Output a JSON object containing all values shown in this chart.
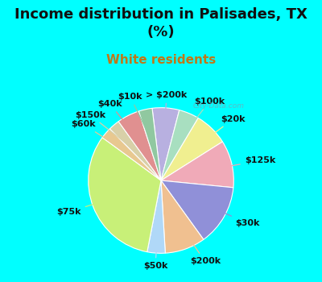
{
  "title": "Income distribution in Palisades, TX\n(%)",
  "subtitle": "White residents",
  "background_color": "#00FFFF",
  "chart_bg_color": "#d8ede4",
  "watermark": "City-Data.com",
  "slices": [
    {
      "label": "> $200k",
      "value": 6.0,
      "color": "#b8b0e0"
    },
    {
      "label": "$100k",
      "value": 4.5,
      "color": "#a8dfc0"
    },
    {
      "label": "$20k",
      "value": 7.5,
      "color": "#f0ef90"
    },
    {
      "label": "$125k",
      "value": 10.5,
      "color": "#f0aab8"
    },
    {
      "label": "$30k",
      "value": 13.5,
      "color": "#9090d8"
    },
    {
      "label": "$200k",
      "value": 9.0,
      "color": "#f0c090"
    },
    {
      "label": "$50k",
      "value": 4.0,
      "color": "#b0d8f8"
    },
    {
      "label": "$75k",
      "value": 32.0,
      "color": "#c8f078"
    },
    {
      "label": "$60k",
      "value": 2.5,
      "color": "#e8c890"
    },
    {
      "label": "$150k",
      "value": 2.5,
      "color": "#d8d0a8"
    },
    {
      "label": "$40k",
      "value": 5.0,
      "color": "#e09090"
    },
    {
      "label": "$10k",
      "value": 3.0,
      "color": "#90c8a0"
    }
  ],
  "startangle": 97,
  "label_fontsize": 8,
  "title_fontsize": 13,
  "subtitle_fontsize": 11,
  "subtitle_color": "#c07818",
  "label_color": "#111111"
}
